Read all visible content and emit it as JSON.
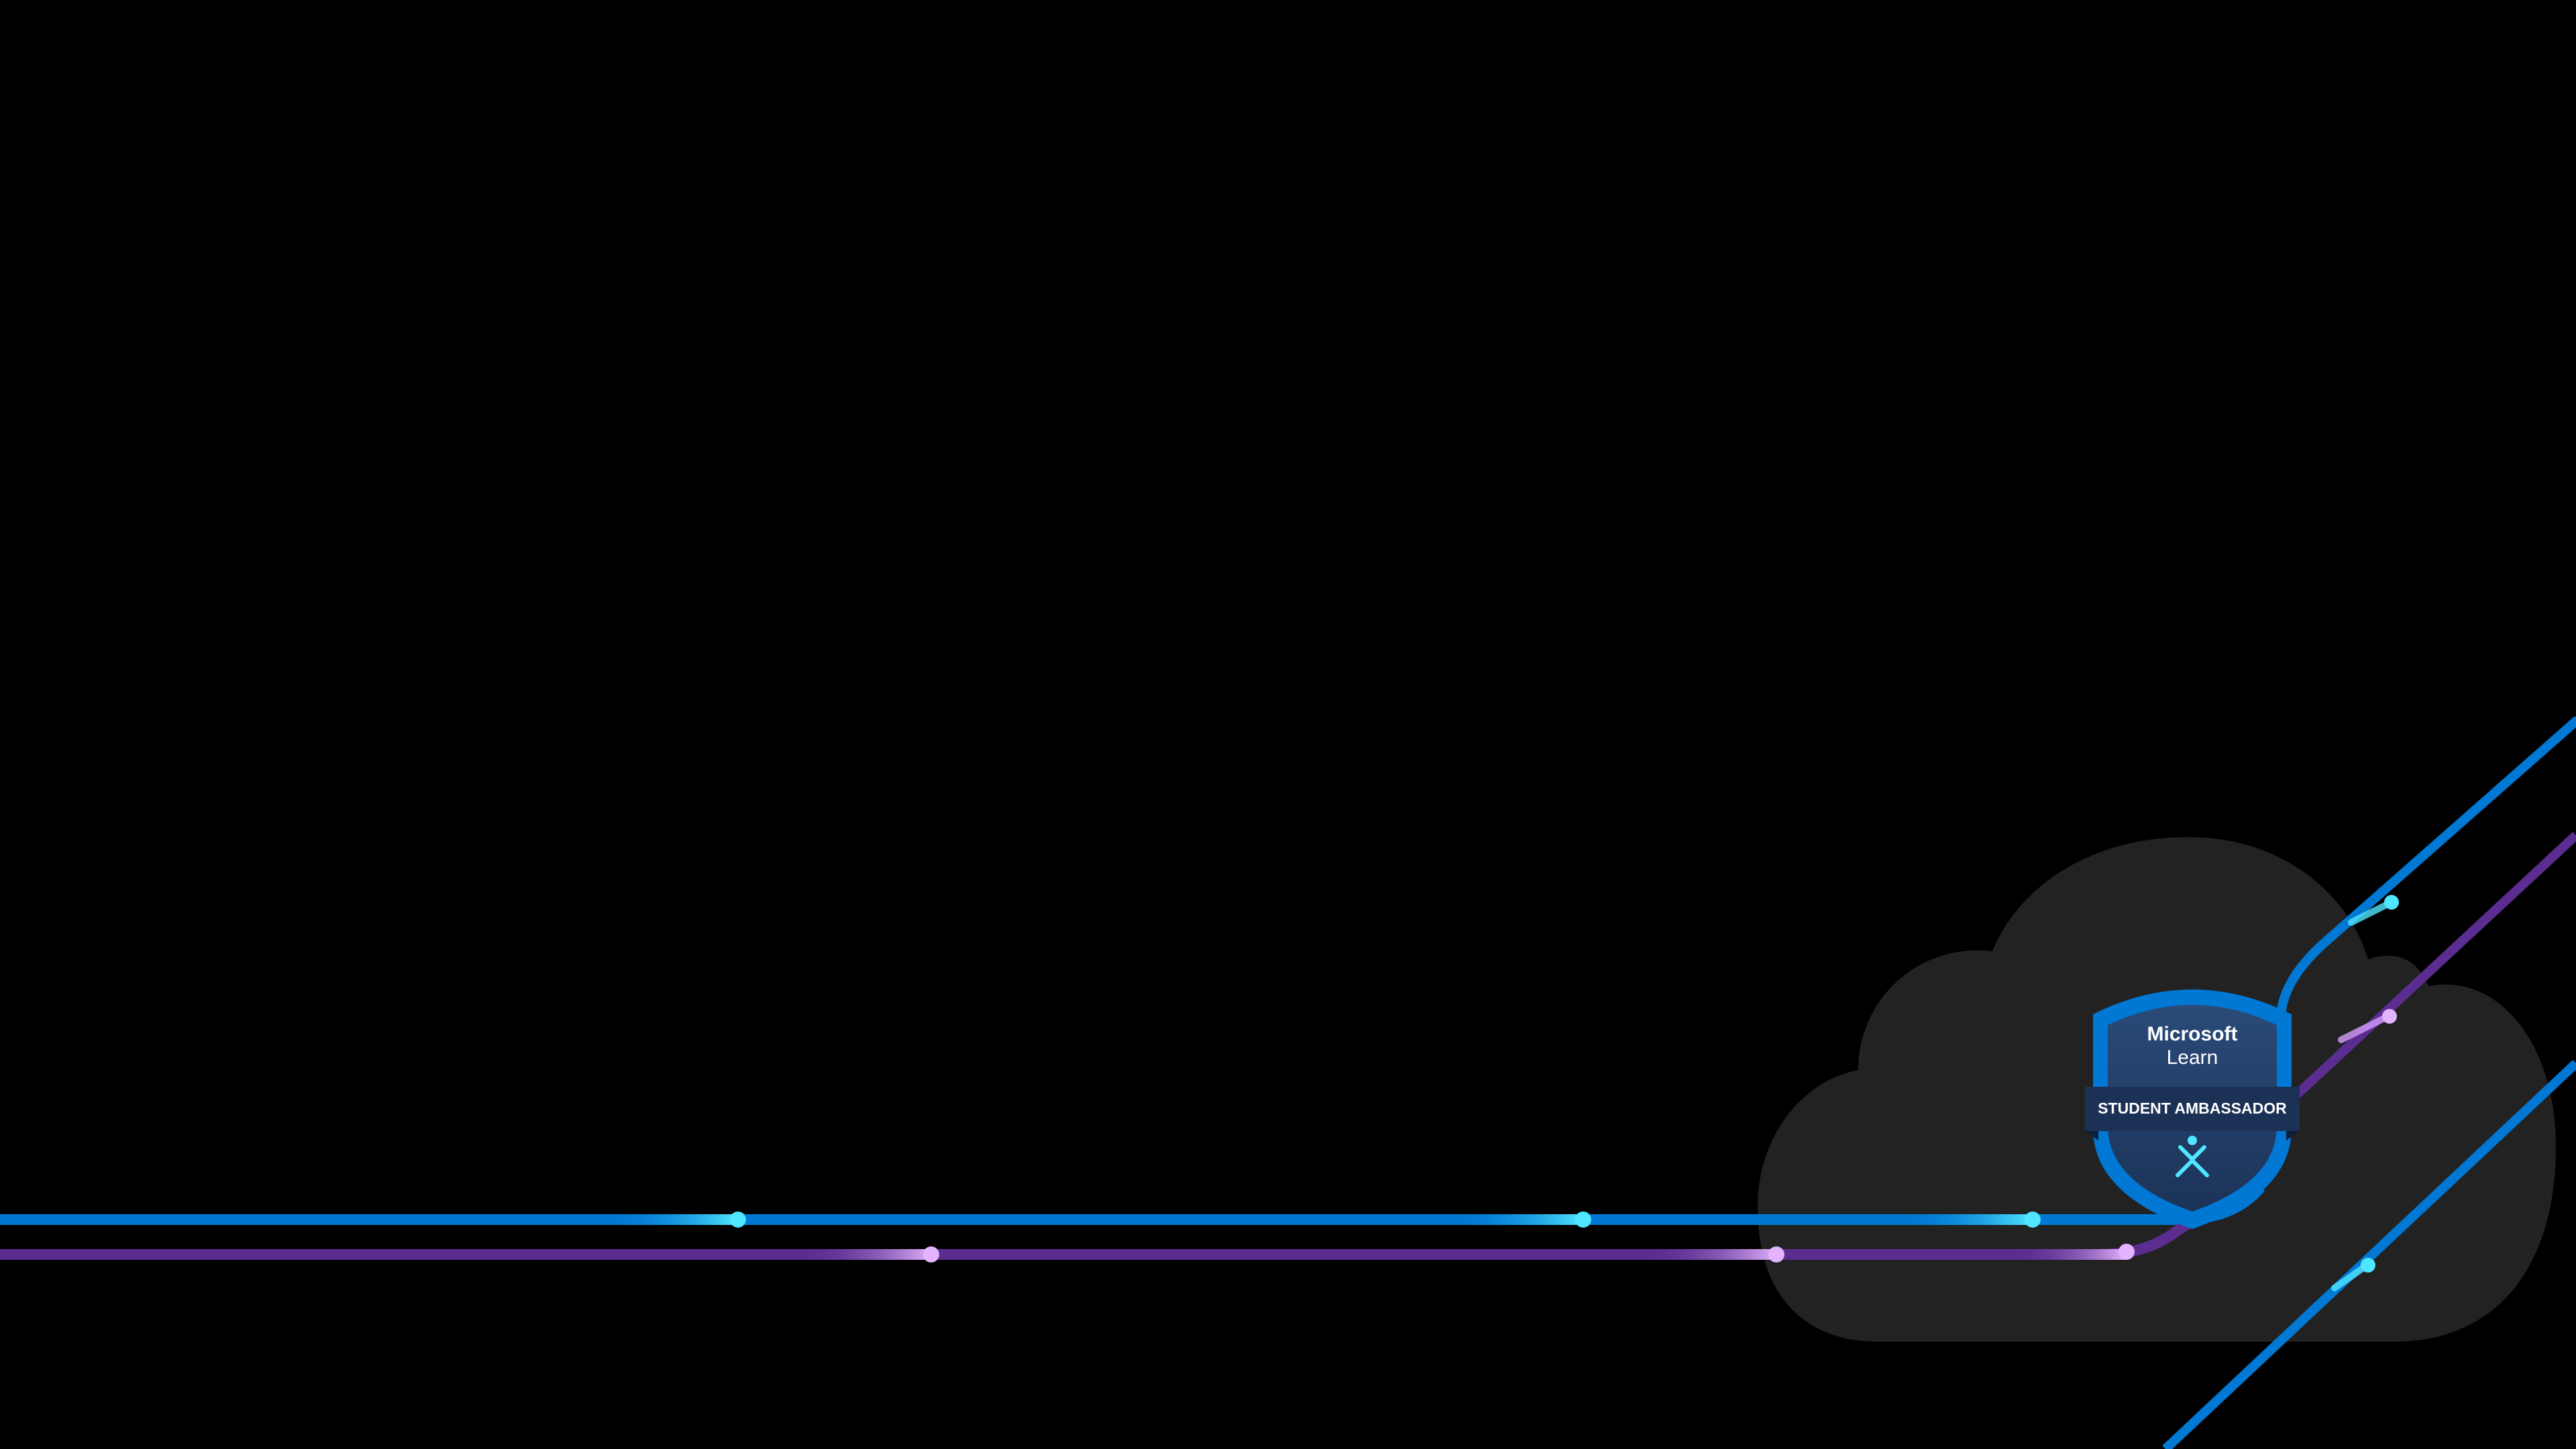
{
  "background": {
    "color": "#000000"
  },
  "cloud": {
    "color": "#222222"
  },
  "lines": {
    "blue": "#0078d4",
    "purple": "#5c2d91",
    "dot_cyan": "#50e6ff",
    "dot_pink": "#d59dff"
  },
  "badge": {
    "brand_line1": "Microsoft",
    "brand_line2": "Learn",
    "ribbon_text": "STUDENT AMBASSADOR",
    "shield_color": "#243a5e",
    "rim_color": "#0078d4",
    "ribbon_color": "#1b3156",
    "icon": "ambassador-figure-icon"
  }
}
